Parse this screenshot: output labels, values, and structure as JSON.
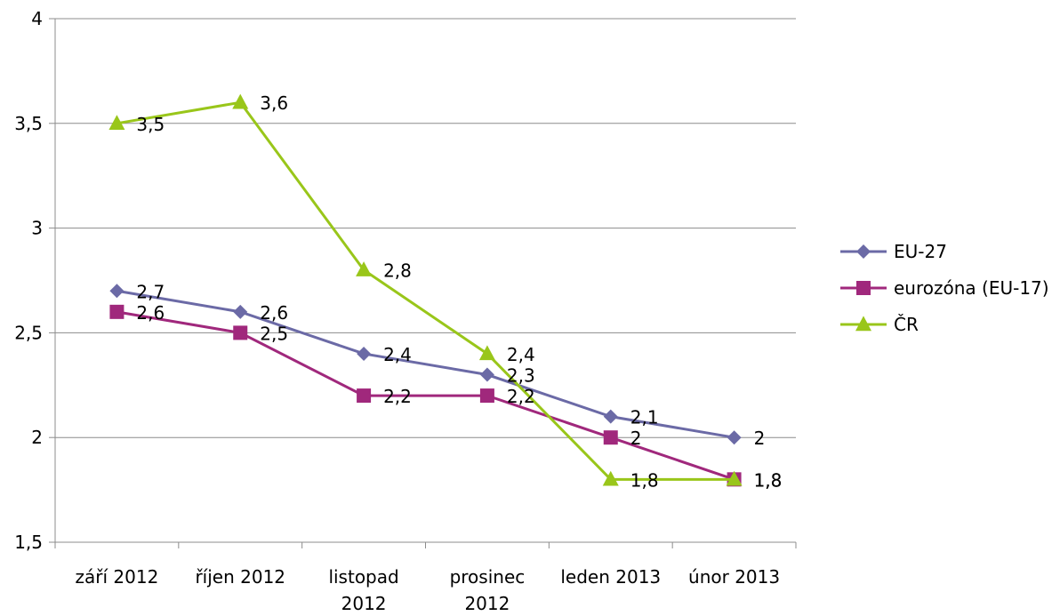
{
  "chart_data": {
    "type": "line",
    "title": "",
    "xlabel": "",
    "ylabel": "",
    "ylim": [
      1.5,
      4
    ],
    "y_ticks": [
      "1,5",
      "2",
      "2,5",
      "3",
      "3,5",
      "4"
    ],
    "y_tick_values": [
      1.5,
      2,
      2.5,
      3,
      3.5,
      4
    ],
    "categories": [
      [
        "září 2012"
      ],
      [
        "říjen 2012"
      ],
      [
        "listopad",
        "2012"
      ],
      [
        "prosinec",
        "2012"
      ],
      [
        "leden 2013"
      ],
      [
        "únor 2013"
      ]
    ],
    "grid": true,
    "legend_position": "right",
    "series": [
      {
        "name": "EU-27",
        "color": "#6b6aa6",
        "marker": "diamond",
        "values": [
          2.7,
          2.6,
          2.4,
          2.3,
          2.1,
          2.0
        ],
        "labels": [
          "2,7",
          "2,6",
          "2,4",
          "2,3",
          "2,1",
          "2"
        ]
      },
      {
        "name": "eurozóna (EU-17)",
        "color": "#a0287c",
        "marker": "square",
        "values": [
          2.6,
          2.5,
          2.2,
          2.2,
          2.0,
          1.8
        ],
        "labels": [
          "2,6",
          "2,5",
          "2,2",
          "2,2",
          "2",
          "1,8"
        ]
      },
      {
        "name": "ČR",
        "color": "#99c61a",
        "marker": "triangle",
        "values": [
          3.5,
          3.6,
          2.8,
          2.4,
          1.8,
          1.8
        ],
        "labels": [
          "3,5",
          "3,6",
          "2,8",
          "2,4",
          "1,8",
          "1,8"
        ]
      }
    ]
  }
}
